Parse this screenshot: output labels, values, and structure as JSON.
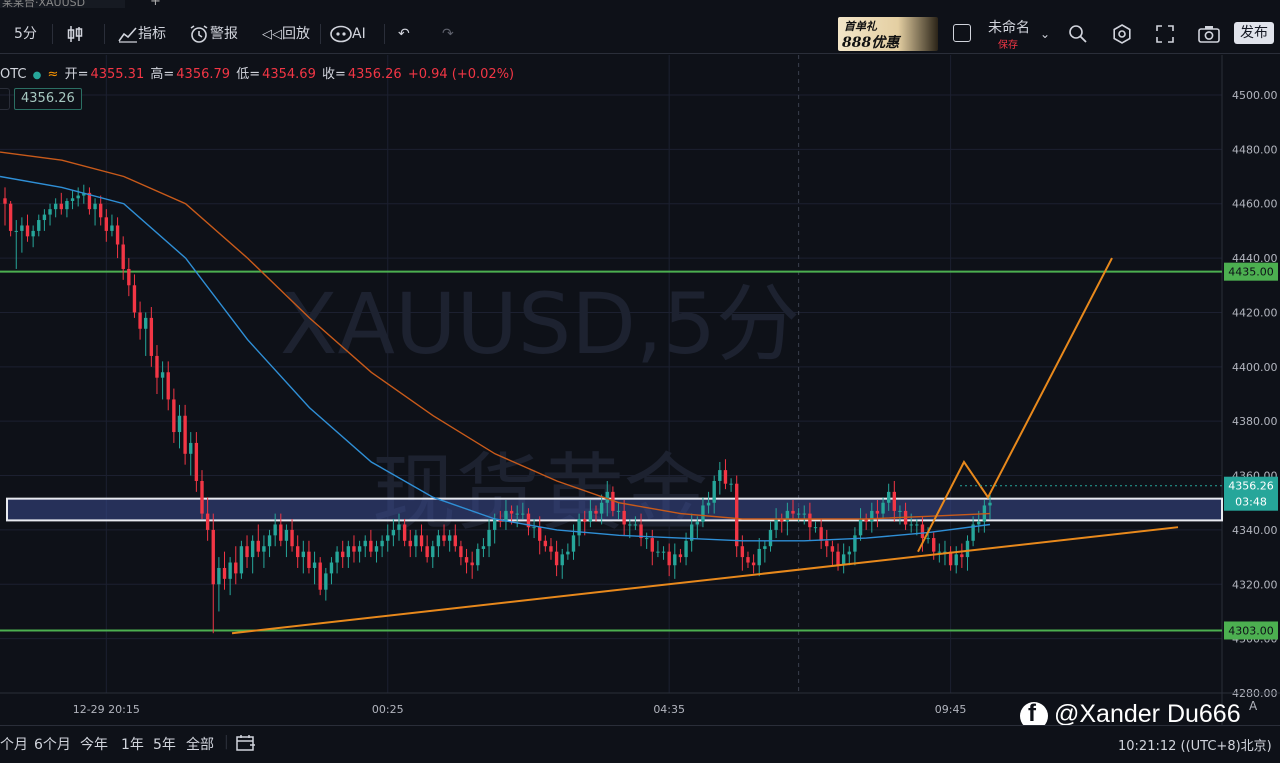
{
  "window": {
    "tab_label": "某某台·XAUUSD"
  },
  "toolbar": {
    "interval": "5分",
    "indicators": "指标",
    "alerts": "警报",
    "replay": "回放",
    "ai": "AI",
    "promo_line1": "首单礼",
    "promo_line2": "888优惠",
    "layout_name": "未命名",
    "save_status": "保存",
    "publish": "发布"
  },
  "legend": {
    "symbol": "OTC",
    "open_label": "开=",
    "open": "4355.31",
    "high_label": "高=",
    "high": "4356.79",
    "low_label": "低=",
    "low": "4354.69",
    "close_label": "收=",
    "close": "4356.26",
    "change": "+0.94 (+0.02%)",
    "price_tag": "4356.26"
  },
  "bottom": {
    "ranges": [
      "个月",
      "6个月",
      "今年",
      "1年",
      "5年",
      "全部"
    ],
    "clock": "10:21:12 ((UTC+8)北京)"
  },
  "watermark": {
    "line1": "XAUUSD,5分",
    "line2": "现货黄金"
  },
  "credit": {
    "name": "@Xander Du666"
  },
  "axis_flags": {
    "auto": "A"
  },
  "chart_data": {
    "type": "candlestick",
    "symbol": "XAUUSD",
    "interval": "5分",
    "ylim": [
      4280,
      4510
    ],
    "y_ticks": [
      4280,
      4300,
      4320,
      4340,
      4360,
      4380,
      4400,
      4420,
      4440,
      4460,
      4480,
      4500
    ],
    "x_ticks": [
      "12-29 20:15",
      "00:25",
      "04:35",
      "09:45"
    ],
    "x_tick_index": [
      18,
      68,
      118,
      168
    ],
    "bar_count": 176,
    "candles_ohlc_approx": [
      [
        4462,
        4466,
        4452,
        4460
      ],
      [
        4460,
        4461,
        4448,
        4450
      ],
      [
        4450,
        4454,
        4436,
        4450
      ],
      [
        4450,
        4455,
        4442,
        4452
      ],
      [
        4452,
        4456,
        4446,
        4448
      ],
      [
        4448,
        4452,
        4444,
        4450
      ],
      [
        4450,
        4456,
        4448,
        4454
      ],
      [
        4454,
        4458,
        4450,
        4456
      ],
      [
        4456,
        4460,
        4452,
        4458
      ],
      [
        4458,
        4462,
        4455,
        4460
      ],
      [
        4460,
        4464,
        4456,
        4458
      ],
      [
        4458,
        4462,
        4455,
        4461
      ],
      [
        4461,
        4465,
        4458,
        4462
      ],
      [
        4462,
        4466,
        4459,
        4463
      ],
      [
        4463,
        4467,
        4460,
        4464
      ],
      [
        4464,
        4466,
        4456,
        4458
      ],
      [
        4458,
        4462,
        4452,
        4460
      ],
      [
        4460,
        4463,
        4452,
        4455
      ],
      [
        4455,
        4458,
        4446,
        4450
      ],
      [
        4450,
        4456,
        4448,
        4452
      ],
      [
        4452,
        4455,
        4440,
        4445
      ],
      [
        4445,
        4448,
        4432,
        4436
      ],
      [
        4436,
        4440,
        4426,
        4430
      ],
      [
        4430,
        4434,
        4418,
        4420
      ],
      [
        4420,
        4424,
        4410,
        4414
      ],
      [
        4414,
        4420,
        4404,
        4418
      ],
      [
        4418,
        4422,
        4400,
        4404
      ],
      [
        4404,
        4408,
        4390,
        4396
      ],
      [
        4396,
        4402,
        4388,
        4398
      ],
      [
        4398,
        4402,
        4384,
        4388
      ],
      [
        4388,
        4392,
        4372,
        4376
      ],
      [
        4376,
        4386,
        4370,
        4382
      ],
      [
        4382,
        4386,
        4364,
        4368
      ],
      [
        4368,
        4376,
        4360,
        4372
      ],
      [
        4372,
        4376,
        4354,
        4358
      ],
      [
        4358,
        4362,
        4344,
        4346
      ],
      [
        4346,
        4352,
        4336,
        4340
      ],
      [
        4340,
        4346,
        4302,
        4320
      ],
      [
        4320,
        4330,
        4310,
        4326
      ],
      [
        4326,
        4332,
        4318,
        4322
      ],
      [
        4322,
        4330,
        4316,
        4328
      ],
      [
        4328,
        4334,
        4320,
        4324
      ],
      [
        4324,
        4336,
        4322,
        4334
      ],
      [
        4334,
        4338,
        4326,
        4330
      ],
      [
        4330,
        4338,
        4324,
        4336
      ],
      [
        4336,
        4342,
        4330,
        4332
      ],
      [
        4332,
        4338,
        4326,
        4334
      ],
      [
        4334,
        4340,
        4330,
        4338
      ],
      [
        4338,
        4346,
        4334,
        4342
      ],
      [
        4342,
        4346,
        4334,
        4336
      ],
      [
        4336,
        4342,
        4330,
        4340
      ],
      [
        4340,
        4344,
        4332,
        4334
      ],
      [
        4334,
        4338,
        4326,
        4330
      ],
      [
        4330,
        4336,
        4324,
        4332
      ],
      [
        4332,
        4336,
        4324,
        4326
      ],
      [
        4326,
        4332,
        4320,
        4328
      ],
      [
        4328,
        4330,
        4316,
        4318
      ],
      [
        4318,
        4326,
        4314,
        4324
      ],
      [
        4324,
        4330,
        4320,
        4328
      ],
      [
        4328,
        4334,
        4324,
        4332
      ],
      [
        4332,
        4336,
        4326,
        4330
      ],
      [
        4330,
        4336,
        4326,
        4334
      ],
      [
        4334,
        4338,
        4328,
        4332
      ],
      [
        4332,
        4336,
        4328,
        4334
      ],
      [
        4334,
        4338,
        4330,
        4336
      ],
      [
        4336,
        4340,
        4330,
        4332
      ],
      [
        4332,
        4336,
        4328,
        4334
      ],
      [
        4334,
        4338,
        4330,
        4336
      ],
      [
        4336,
        4342,
        4332,
        4338
      ],
      [
        4338,
        4344,
        4334,
        4340
      ],
      [
        4340,
        4346,
        4336,
        4342
      ],
      [
        4342,
        4344,
        4334,
        4336
      ],
      [
        4336,
        4340,
        4330,
        4334
      ],
      [
        4334,
        4340,
        4330,
        4338
      ],
      [
        4338,
        4342,
        4332,
        4334
      ],
      [
        4334,
        4338,
        4328,
        4330
      ],
      [
        4330,
        4336,
        4326,
        4334
      ],
      [
        4334,
        4340,
        4330,
        4338
      ],
      [
        4338,
        4342,
        4334,
        4336
      ],
      [
        4336,
        4340,
        4332,
        4338
      ]
    ],
    "moving_averages": [
      {
        "color": "#2f8fd6",
        "values_approx": [
          4470,
          4466,
          4460,
          4440,
          4410,
          4385,
          4365,
          4352,
          4344,
          4340,
          4338,
          4337,
          4336,
          4336,
          4337,
          4339,
          4342
        ]
      },
      {
        "color": "#c85a1a",
        "values_approx": [
          4479,
          4476,
          4470,
          4460,
          4440,
          4418,
          4398,
          4382,
          4368,
          4358,
          4350,
          4346,
          4344,
          4344,
          4344,
          4345,
          4346
        ]
      }
    ],
    "horizontal_levels": [
      {
        "value": 4435.0,
        "label": "4435.00",
        "color": "#4caf50"
      },
      {
        "value": 4303.0,
        "label": "4303.00",
        "color": "#4caf50"
      }
    ],
    "zone": {
      "from": 4343.5,
      "to": 4351.5,
      "color": "#3b4a8f"
    },
    "trendline": {
      "from": [
        0,
        4302
      ],
      "to": [
        1,
        4341
      ],
      "color": "#e8891c"
    },
    "projection_path": [
      [
        4332,
        0
      ],
      [
        4365,
        1
      ],
      [
        4352,
        2
      ],
      [
        4440,
        3
      ]
    ],
    "last_price": {
      "value": 4356.26,
      "label": "4356.26",
      "countdown": "03:48",
      "color": "#26a69a"
    }
  }
}
